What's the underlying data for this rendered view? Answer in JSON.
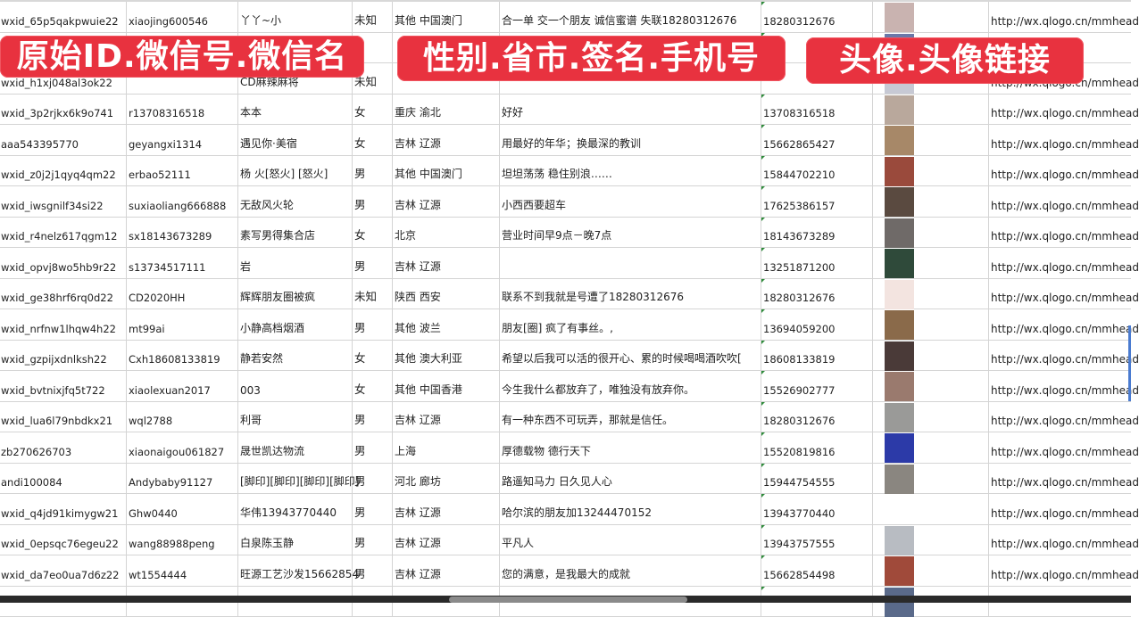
{
  "overlay_labels": [
    "原始ID.微信号.微信名",
    "性别.省市.签名.手机号",
    "头像.头像链接"
  ],
  "overlay_color": "#e8323f",
  "rows": [
    {
      "id": "wxid_65p5qakpwuie22",
      "wechat": "xiaojing600546",
      "name": "丫丫~小",
      "gender": "未知",
      "region": "其他 中国澳门",
      "signature": "合一单 交一个朋友 诚信蜜谱 失联18280312676",
      "phone": "18280312676",
      "avatar_color": "#c9b3b0",
      "url": "http://wx.qlogo.cn/mmhead"
    },
    {
      "id": "",
      "wechat": "",
      "name": "",
      "gender": "",
      "region": "",
      "signature": "",
      "phone": "",
      "avatar_color": "#6a78a8",
      "url": ""
    },
    {
      "id": "wxid_h1xj048al3ok22",
      "wechat": "",
      "name": "CD麻辣麻将",
      "gender": "未知",
      "region": "",
      "signature": "",
      "phone": "",
      "avatar_color": "#c7c9d4",
      "url": "http://wx.qlogo.cn/mmhead"
    },
    {
      "id": "wxid_3p2rjkx6k9o741",
      "wechat": "r13708316518",
      "name": "本本",
      "gender": "女",
      "region": "重庆 渝北",
      "signature": "好好",
      "phone": "13708316518",
      "avatar_color": "#b9a89c",
      "url": "http://wx.qlogo.cn/mmhead"
    },
    {
      "id": "aaa543395770",
      "wechat": "geyangxi1314",
      "name": "遇见你·美宿",
      "gender": "女",
      "region": "吉林 辽源",
      "signature": "用最好的年华；换最深的教训",
      "phone": "15662865427",
      "avatar_color": "#a78868",
      "url": "http://wx.qlogo.cn/mmhead"
    },
    {
      "id": "wxid_z0j2j1qyq4qm22",
      "wechat": "erbao52111",
      "name": "杨 火[怒火] [怒火]",
      "gender": "男",
      "region": "其他 中国澳门",
      "signature": "坦坦荡荡 稳住别浪……",
      "phone": "15844702210",
      "avatar_color": "#9a4a3c",
      "url": "http://wx.qlogo.cn/mmhead"
    },
    {
      "id": "wxid_iwsgnilf34si22",
      "wechat": "suxiaoliang666888",
      "name": "无敌风火轮",
      "gender": "男",
      "region": "吉林 辽源",
      "signature": "小西西要超车",
      "phone": "17625386157",
      "avatar_color": "#5a4a40",
      "url": "http://wx.qlogo.cn/mmhead"
    },
    {
      "id": "wxid_r4nelz617qgm12",
      "wechat": "sx18143673289",
      "name": "素写男得集合店",
      "gender": "女",
      "region": "北京",
      "signature": "营业时间早9点－晚7点",
      "phone": "18143673289",
      "avatar_color": "#6f6a68",
      "url": "http://wx.qlogo.cn/mmhead"
    },
    {
      "id": "wxid_opvj8wo5hb9r22",
      "wechat": "s13734517111",
      "name": "岩",
      "gender": "男",
      "region": "吉林 辽源",
      "signature": "",
      "phone": "13251871200",
      "avatar_color": "#2f4a3a",
      "url": "http://wx.qlogo.cn/mmhead"
    },
    {
      "id": "wxid_ge38hrf6rq0d22",
      "wechat": "CD2020HH",
      "name": "辉辉朋友圈被疯",
      "gender": "未知",
      "region": "陕西 西安",
      "signature": "联系不到我就是号遭了18280312676",
      "phone": "18280312676",
      "avatar_color": "#f3e4e0",
      "url": "http://wx.qlogo.cn/mmhead"
    },
    {
      "id": "wxid_nrfnw1lhqw4h22",
      "wechat": "mt99ai",
      "name": "小静高档烟酒",
      "gender": "男",
      "region": "其他 波兰",
      "signature": "朋友[圈] 疯了有事丝。,",
      "phone": "13694059200",
      "avatar_color": "#8a6a4a",
      "url": "http://wx.qlogo.cn/mmhead"
    },
    {
      "id": "wxid_gzpijxdnlksh22",
      "wechat": "Cxh18608133819",
      "name": "静若安然",
      "gender": "女",
      "region": "其他 澳大利亚",
      "signature": "希望以后我可以活的很开心、累的时候喝喝酒吹吹[",
      "phone": "18608133819",
      "avatar_color": "#4a3a38",
      "url": "http://wx.qlogo.cn/mmhead"
    },
    {
      "id": "wxid_bvtnixjfq5t722",
      "wechat": "xiaolexuan2017",
      "name": "003",
      "gender": "女",
      "region": "其他 中国香港",
      "signature": "今生我什么都放弃了，唯独没有放弃你。",
      "phone": "15526902777",
      "avatar_color": "#9a7a6e",
      "url": "http://wx.qlogo.cn/mmhead"
    },
    {
      "id": "wxid_lua6l79nbdkx21",
      "wechat": "wql2788",
      "name": "利哥",
      "gender": "男",
      "region": "吉林 辽源",
      "signature": "有一种东西不可玩弄，那就是信任。",
      "phone": "18280312676",
      "avatar_color": "#9a9a98",
      "url": "http://wx.qlogo.cn/mmhead"
    },
    {
      "id": "zb270626703",
      "wechat": "xiaonaigou061827",
      "name": "晟世凯达物流",
      "gender": "男",
      "region": "上海",
      "signature": "厚德载物 德行天下",
      "phone": "15520819816",
      "avatar_color": "#2c3aa8",
      "url": "http://wx.qlogo.cn/mmhead"
    },
    {
      "id": "andi100084",
      "wechat": "Andybaby91127",
      "name": "[脚印][脚印][脚印][脚印]",
      "gender": "男",
      "region": "河北 廊坊",
      "signature": "路遥知马力 日久见人心",
      "phone": "15944754555",
      "avatar_color": "#8a8680",
      "url": "http://wx.qlogo.cn/mmhead"
    },
    {
      "id": "wxid_q4jd91kimygw21",
      "wechat": "Ghw0440",
      "name": "华伟13943770440",
      "gender": "男",
      "region": "吉林 辽源",
      "signature": "哈尔滨的朋友加13244470152",
      "phone": "13943770440",
      "avatar_color": "#ffffff",
      "url": "http://wx.qlogo.cn/mmhead"
    },
    {
      "id": "wxid_0epsqc76egeu22",
      "wechat": "wang88988peng",
      "name": "白泉陈玉静",
      "gender": "男",
      "region": "吉林 辽源",
      "signature": "平凡人",
      "phone": "13943757555",
      "avatar_color": "#b8bcc2",
      "url": "http://wx.qlogo.cn/mmhead"
    },
    {
      "id": "wxid_da7eo0ua7d6z22",
      "wechat": "wt1554444",
      "name": "旺源工艺沙发15662854",
      "gender": "男",
      "region": "吉林 辽源",
      "signature": "您的满意，是我最大的成就",
      "phone": "15662854498",
      "avatar_color": "#a04a3a",
      "url": "http://wx.qlogo.cn/mmhead"
    },
    {
      "id": "",
      "wechat": "",
      "name": "",
      "gender": "",
      "region": "",
      "signature": "",
      "phone": "",
      "avatar_color": "#5a6a8a",
      "url": ""
    }
  ]
}
